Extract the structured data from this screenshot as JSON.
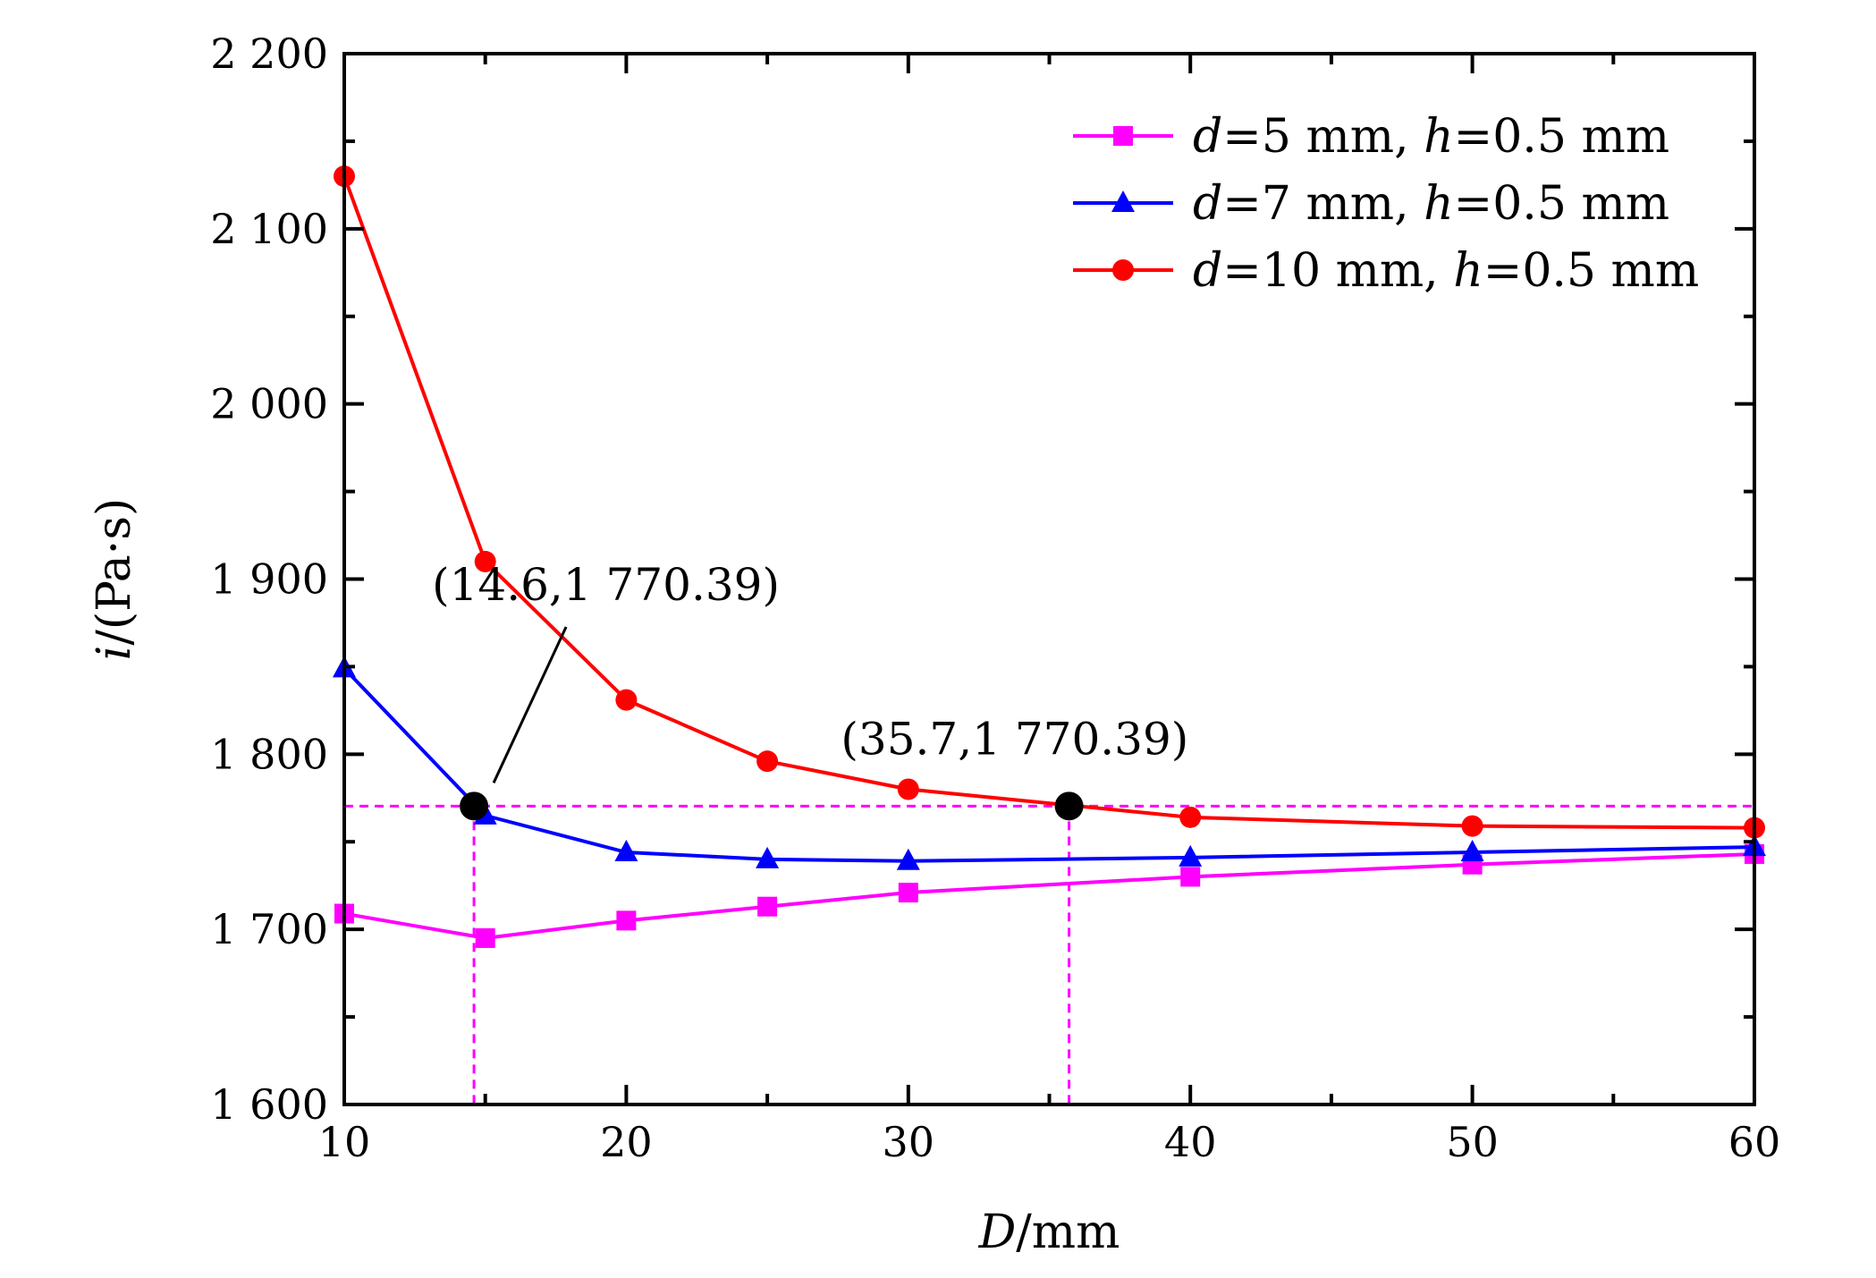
{
  "chart_data": {
    "type": "line",
    "xlabel": "D/mm",
    "ylabel": "i/(Pa·s)",
    "xlabel_parts": {
      "var": "D",
      "unit": "/mm"
    },
    "ylabel_parts": {
      "var": "i",
      "unit": "/(Pa·s)"
    },
    "xlim": [
      10,
      60
    ],
    "ylim": [
      1600,
      2200
    ],
    "x_ticks": [
      10,
      20,
      30,
      40,
      50,
      60
    ],
    "x_tick_labels": [
      "10",
      "20",
      "30",
      "40",
      "50",
      "60"
    ],
    "y_ticks": [
      1600,
      1700,
      1800,
      1900,
      2000,
      2100,
      2200
    ],
    "y_tick_labels": [
      "1 600",
      "1 700",
      "1 800",
      "1 900",
      "2 000",
      "2 100",
      "2 200"
    ],
    "grid": false,
    "legend_position": "top-right",
    "series": [
      {
        "name": "d=5 mm, h=0.5 mm",
        "name_parts": {
          "d_val": "=5 mm,",
          "h_val": "=0.5 mm"
        },
        "marker": "square",
        "color": "#ff00ff",
        "x": [
          10,
          15,
          20,
          25,
          30,
          40,
          50,
          60
        ],
        "y": [
          1709,
          1695,
          1705,
          1713,
          1721,
          1730,
          1737,
          1743
        ]
      },
      {
        "name": "d=7 mm, h=0.5 mm",
        "name_parts": {
          "d_val": "=7 mm,",
          "h_val": "=0.5 mm"
        },
        "marker": "triangle",
        "color": "#0000ff",
        "x": [
          10,
          15,
          20,
          25,
          30,
          40,
          50,
          60
        ],
        "y": [
          1849,
          1765,
          1744,
          1740,
          1739,
          1741,
          1744,
          1747
        ]
      },
      {
        "name": "d=10 mm, h=0.5 mm",
        "name_parts": {
          "d_val": "=10 mm,",
          "h_val": "=0.5 mm"
        },
        "marker": "circle",
        "color": "#ff0000",
        "x": [
          10,
          15,
          20,
          25,
          30,
          40,
          50,
          60
        ],
        "y": [
          2130,
          1910,
          1831,
          1796,
          1780,
          1764,
          1759,
          1758
        ]
      }
    ],
    "reference_line": {
      "y": 1770.39,
      "color": "#ff00ff",
      "style": "dashed"
    },
    "annotations": [
      {
        "label": "(14.6,1 770.39)",
        "x": 14.6,
        "y": 1770.39,
        "text_anchor_x": 18.5,
        "text_anchor_y": 1888
      },
      {
        "label": "(35.7,1 770.39)",
        "x": 35.7,
        "y": 1770.39,
        "text_anchor_x": 33.0,
        "text_anchor_y": 1800
      }
    ]
  }
}
